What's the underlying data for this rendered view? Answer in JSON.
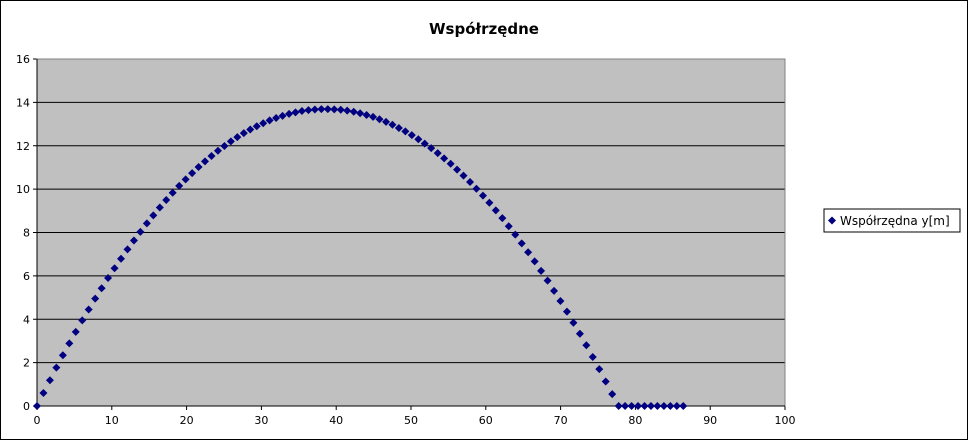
{
  "chart_data": {
    "type": "scatter",
    "title": "Współrzędne",
    "xlabel": "",
    "ylabel": "",
    "xlim": [
      0,
      100
    ],
    "ylim": [
      0,
      16
    ],
    "x_ticks": [
      0,
      10,
      20,
      30,
      40,
      50,
      60,
      70,
      80,
      90,
      100
    ],
    "y_ticks": [
      0,
      2,
      4,
      6,
      8,
      10,
      12,
      14,
      16
    ],
    "grid": "horizontal",
    "legend_position": "right",
    "plot_background": "#c0c0c0",
    "series": [
      {
        "name": "Współrzędna y[m]",
        "color": "#000080",
        "marker": "diamond",
        "x": [
          0,
          0.86,
          1.73,
          2.59,
          3.46,
          4.32,
          5.18,
          6.05,
          6.91,
          7.78,
          8.64,
          9.5,
          10.37,
          11.23,
          12.1,
          12.96,
          13.82,
          14.69,
          15.55,
          16.42,
          17.28,
          18.14,
          19.01,
          19.87,
          20.74,
          21.6,
          22.46,
          23.33,
          24.19,
          25.06,
          25.92,
          26.78,
          27.65,
          28.51,
          29.38,
          30.24,
          31.1,
          31.97,
          32.83,
          33.7,
          34.56,
          35.42,
          36.29,
          37.15,
          38.02,
          38.88,
          39.74,
          40.61,
          41.47,
          42.34,
          43.2,
          44.06,
          44.93,
          45.79,
          46.66,
          47.52,
          48.38,
          49.25,
          50.11,
          50.98,
          51.84,
          52.7,
          53.57,
          54.43,
          55.3,
          56.16,
          57.02,
          57.89,
          58.75,
          59.62,
          60.48,
          61.34,
          62.21,
          63.07,
          63.94,
          64.8,
          65.66,
          66.53,
          67.39,
          68.26,
          69.12,
          69.98,
          70.85,
          71.71,
          72.58,
          73.44,
          74.3,
          75.17,
          76.03,
          76.9,
          77.76,
          78.62,
          79.49,
          80.35,
          81.22,
          82.08,
          82.94,
          83.81,
          84.67,
          85.54,
          86.4
        ],
        "y": [
          0,
          0.6,
          1.19,
          1.77,
          2.34,
          2.89,
          3.42,
          3.95,
          4.45,
          4.95,
          5.43,
          5.9,
          6.35,
          6.79,
          7.22,
          7.63,
          8.03,
          8.42,
          8.79,
          9.15,
          9.5,
          9.83,
          10.15,
          10.45,
          10.74,
          11.02,
          11.28,
          11.53,
          11.77,
          11.99,
          12.2,
          12.4,
          12.58,
          12.75,
          12.9,
          13.04,
          13.17,
          13.28,
          13.38,
          13.47,
          13.54,
          13.6,
          13.64,
          13.67,
          13.69,
          13.69,
          13.68,
          13.66,
          13.62,
          13.57,
          13.5,
          13.42,
          13.33,
          13.22,
          13.1,
          12.97,
          12.82,
          12.66,
          12.49,
          12.3,
          12.1,
          11.89,
          11.66,
          11.42,
          11.17,
          10.9,
          10.62,
          10.33,
          10.02,
          9.7,
          9.37,
          9.02,
          8.66,
          8.29,
          7.9,
          7.5,
          7.09,
          6.67,
          6.23,
          5.78,
          5.31,
          4.84,
          4.35,
          3.84,
          3.33,
          2.8,
          2.26,
          1.7,
          1.13,
          0.55,
          0,
          0,
          0,
          0,
          0,
          0,
          0,
          0,
          0,
          0,
          0
        ]
      }
    ]
  }
}
